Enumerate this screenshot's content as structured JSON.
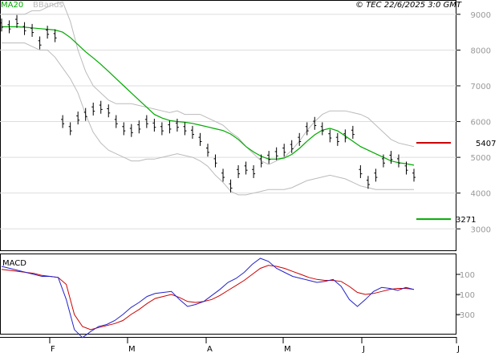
{
  "header": {
    "left_label_ma": "MA20",
    "left_label_bb": "BBands",
    "copyright": "© TEC 22/6/2025 3:0 GMT"
  },
  "colors": {
    "price": "#000000",
    "ma": "#00aa00",
    "bbands": "#bbbbbb",
    "macd": "#2222cc",
    "signal": "#cc0000",
    "resistance": "#cc0000",
    "support": "#00aa00",
    "grid": "#dddddd"
  },
  "chart_data": [
    {
      "type": "line",
      "title": "",
      "ylim": [
        2400,
        9400
      ],
      "y_ticks": [
        9000,
        8000,
        7000,
        6000,
        5000,
        4000,
        3000
      ],
      "x_ticks": [
        "F",
        "M",
        "A",
        "M",
        "J",
        "J"
      ],
      "levels": [
        {
          "label": "5407",
          "value": 5407,
          "kind": "resistance"
        },
        {
          "label": "3271",
          "value": 3271,
          "kind": "support"
        }
      ],
      "series": [
        {
          "name": "MA20",
          "values": [
            8650,
            8650,
            8650,
            8640,
            8620,
            8600,
            8580,
            8560,
            8500,
            8350,
            8150,
            7950,
            7780,
            7600,
            7400,
            7200,
            7000,
            6800,
            6600,
            6400,
            6200,
            6100,
            6030,
            6000,
            5980,
            5950,
            5900,
            5850,
            5800,
            5750,
            5650,
            5500,
            5300,
            5150,
            5030,
            4950,
            4950,
            4980,
            5080,
            5250,
            5450,
            5630,
            5760,
            5810,
            5740,
            5600,
            5450,
            5300,
            5200,
            5100,
            5000,
            4900,
            4850,
            4820,
            4780
          ]
        },
        {
          "name": "Price",
          "values": [
            8700,
            8650,
            8800,
            8600,
            8550,
            8200,
            8500,
            8400,
            6000,
            5800,
            6100,
            6200,
            6350,
            6400,
            6300,
            6000,
            5800,
            5750,
            5850,
            6000,
            5900,
            5800,
            5850,
            5900,
            5800,
            5700,
            5500,
            5200,
            4900,
            4500,
            4200,
            4600,
            4700,
            4600,
            4900,
            5000,
            5100,
            5200,
            5300,
            5500,
            5800,
            5950,
            5800,
            5600,
            5500,
            5600,
            5700,
            4600,
            4300,
            4500,
            4900,
            5000,
            4900,
            4700,
            4500
          ]
        },
        {
          "name": "BB upper",
          "values": [
            9000,
            9000,
            9000,
            9000,
            9100,
            9100,
            9200,
            9300,
            9350,
            8800,
            8000,
            7400,
            7000,
            6800,
            6600,
            6500,
            6500,
            6500,
            6450,
            6400,
            6350,
            6300,
            6250,
            6300,
            6200,
            6200,
            6200,
            6100,
            6000,
            5900,
            5700,
            5550,
            5300,
            5100,
            4900,
            4800,
            4900,
            5000,
            5200,
            5450,
            5750,
            6000,
            6200,
            6300,
            6300,
            6300,
            6250,
            6200,
            6100,
            5900,
            5700,
            5500,
            5400,
            5350,
            5300
          ]
        },
        {
          "name": "BB lower",
          "values": [
            8200,
            8200,
            8200,
            8200,
            8100,
            8000,
            8000,
            7800,
            7500,
            7200,
            6800,
            6200,
            5700,
            5400,
            5200,
            5100,
            5000,
            4900,
            4900,
            4950,
            4950,
            5000,
            5050,
            5100,
            5050,
            5000,
            4900,
            4750,
            4500,
            4300,
            4050,
            3950,
            3950,
            4000,
            4050,
            4100,
            4100,
            4100,
            4150,
            4250,
            4350,
            4400,
            4450,
            4500,
            4450,
            4400,
            4300,
            4200,
            4150,
            4100,
            4100,
            4100,
            4100,
            4100,
            4100
          ]
        }
      ]
    },
    {
      "type": "line",
      "title": "MACD",
      "ylim": [
        -500,
        300
      ],
      "y_ticks": [
        100,
        -100,
        -300
      ],
      "series": [
        {
          "name": "MACD",
          "values": [
            180,
            160,
            140,
            120,
            100,
            80,
            80,
            70,
            -150,
            -450,
            -530,
            -470,
            -420,
            -400,
            -360,
            -300,
            -230,
            -180,
            -120,
            -90,
            -80,
            -70,
            -150,
            -220,
            -200,
            -170,
            -110,
            -50,
            20,
            60,
            120,
            200,
            260,
            230,
            160,
            120,
            80,
            60,
            40,
            20,
            30,
            50,
            -20,
            -150,
            -220,
            -150,
            -70,
            -30,
            -40,
            -60,
            -30,
            -50
          ]
        },
        {
          "name": "Signal",
          "values": [
            150,
            140,
            130,
            120,
            110,
            90,
            80,
            70,
            0,
            -300,
            -420,
            -450,
            -430,
            -410,
            -390,
            -360,
            -300,
            -250,
            -190,
            -140,
            -120,
            -100,
            -130,
            -170,
            -180,
            -170,
            -150,
            -110,
            -60,
            -10,
            40,
            100,
            160,
            190,
            180,
            160,
            130,
            100,
            70,
            50,
            40,
            40,
            30,
            -20,
            -80,
            -100,
            -90,
            -70,
            -50,
            -40,
            -40,
            -50
          ]
        }
      ]
    }
  ]
}
